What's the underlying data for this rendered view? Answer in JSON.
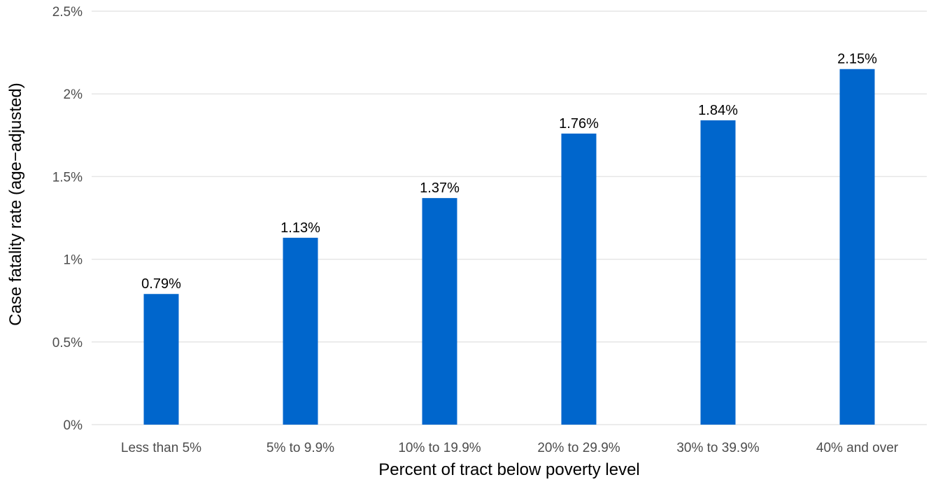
{
  "chart_data": {
    "type": "bar",
    "title": "",
    "xlabel": "Percent of tract below poverty level",
    "ylabel": "Case fatality rate (age−adjusted)",
    "categories": [
      "Less than 5%",
      "5% to 9.9%",
      "10% to 19.9%",
      "20% to 29.9%",
      "30% to 39.9%",
      "40% and over"
    ],
    "values": [
      0.79,
      1.13,
      1.37,
      1.76,
      1.84,
      2.15
    ],
    "data_labels": [
      "0.79%",
      "1.13%",
      "1.37%",
      "1.76%",
      "1.84%",
      "2.15%"
    ],
    "ylim": [
      0,
      2.5
    ],
    "yticks": [
      0,
      0.5,
      1,
      1.5,
      2,
      2.5
    ],
    "ytick_labels": [
      "0%",
      "0.5%",
      "1%",
      "1.5%",
      "2%",
      "2.5%"
    ],
    "bar_color": "#0066cc",
    "grid": true,
    "legend": "none"
  }
}
